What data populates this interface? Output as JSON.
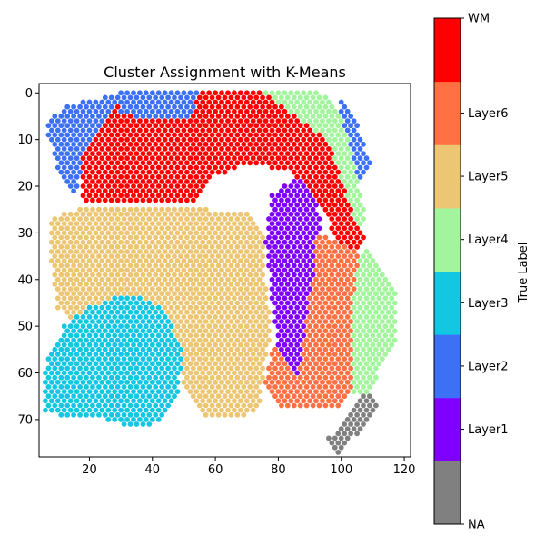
{
  "chart_data": {
    "type": "scatter",
    "title": "Cluster Assignment with K-Means",
    "xlabel": "",
    "ylabel": "",
    "xlim": [
      4,
      122
    ],
    "ylim": [
      78,
      -2
    ],
    "y_inverted": true,
    "x_ticks": [
      20,
      40,
      60,
      80,
      100,
      120
    ],
    "y_ticks": [
      0,
      10,
      20,
      30,
      40,
      50,
      60,
      70
    ],
    "grid": false,
    "colorbar": {
      "label": "True Label",
      "placement": "right",
      "categories": [
        {
          "name": "NA",
          "color": "#808080"
        },
        {
          "name": "Layer1",
          "color": "#8000ff"
        },
        {
          "name": "Layer2",
          "color": "#3c70f5"
        },
        {
          "name": "Layer3",
          "color": "#13c7e3"
        },
        {
          "name": "Layer4",
          "color": "#a2f59c"
        },
        {
          "name": "Layer5",
          "color": "#edc674"
        },
        {
          "name": "Layer6",
          "color": "#ff7142"
        },
        {
          "name": "WM",
          "color": "#ff0000"
        }
      ]
    },
    "regions": [
      {
        "label": "WM",
        "points": [
          [
            18,
            13
          ],
          [
            30,
            0
          ],
          [
            50,
            0
          ],
          [
            75,
            0
          ],
          [
            92,
            0
          ],
          [
            104,
            20
          ],
          [
            108,
            32
          ],
          [
            102,
            36
          ],
          [
            94,
            25
          ],
          [
            84,
            17
          ],
          [
            70,
            15
          ],
          [
            60,
            18
          ],
          [
            52,
            24
          ],
          [
            42,
            24
          ],
          [
            30,
            24
          ],
          [
            18,
            24
          ]
        ]
      },
      {
        "label": "Layer2",
        "points": [
          [
            6,
            7
          ],
          [
            12,
            3
          ],
          [
            30,
            0
          ],
          [
            26,
            6
          ],
          [
            22,
            10
          ],
          [
            18,
            13
          ],
          [
            16,
            22
          ],
          [
            10,
            16
          ]
        ]
      },
      {
        "label": "Layer2",
        "points": [
          [
            30,
            0
          ],
          [
            55,
            0
          ],
          [
            52,
            5
          ],
          [
            40,
            6
          ],
          [
            30,
            4
          ]
        ]
      },
      {
        "label": "Layer2",
        "points": [
          [
            100,
            0
          ],
          [
            104,
            5
          ],
          [
            108,
            12
          ],
          [
            110,
            15
          ],
          [
            105,
            20
          ],
          [
            100,
            12
          ]
        ]
      },
      {
        "label": "Layer4",
        "points": [
          [
            76,
            0
          ],
          [
            94,
            0
          ],
          [
            100,
            5
          ],
          [
            104,
            14
          ],
          [
            108,
            26
          ],
          [
            106,
            30
          ],
          [
            100,
            18
          ],
          [
            96,
            10
          ]
        ]
      },
      {
        "label": "Layer4",
        "points": [
          [
            108,
            32
          ],
          [
            112,
            36
          ],
          [
            118,
            42
          ],
          [
            118,
            52
          ],
          [
            112,
            60
          ],
          [
            108,
            66
          ],
          [
            100,
            62
          ],
          [
            102,
            50
          ],
          [
            104,
            40
          ]
        ]
      },
      {
        "label": "Layer5",
        "points": [
          [
            8,
            27
          ],
          [
            16,
            25
          ],
          [
            30,
            25
          ],
          [
            44,
            25
          ],
          [
            58,
            25
          ],
          [
            72,
            26
          ],
          [
            76,
            30
          ],
          [
            76,
            40
          ],
          [
            78,
            50
          ],
          [
            76,
            58
          ],
          [
            74,
            68
          ],
          [
            66,
            70
          ],
          [
            56,
            70
          ],
          [
            50,
            62
          ],
          [
            44,
            46
          ],
          [
            34,
            44
          ],
          [
            24,
            46
          ],
          [
            16,
            50
          ],
          [
            10,
            46
          ],
          [
            8,
            36
          ]
        ]
      },
      {
        "label": "Layer3",
        "points": [
          [
            7,
            56
          ],
          [
            12,
            50
          ],
          [
            20,
            46
          ],
          [
            28,
            44
          ],
          [
            38,
            44
          ],
          [
            44,
            46
          ],
          [
            50,
            56
          ],
          [
            48,
            66
          ],
          [
            44,
            70
          ],
          [
            36,
            72
          ],
          [
            26,
            70
          ],
          [
            16,
            70
          ],
          [
            6,
            68
          ],
          [
            5,
            62
          ]
        ]
      },
      {
        "label": "Layer1",
        "points": [
          [
            78,
            22
          ],
          [
            86,
            18
          ],
          [
            92,
            22
          ],
          [
            94,
            30
          ],
          [
            92,
            40
          ],
          [
            90,
            48
          ],
          [
            88,
            56
          ],
          [
            86,
            64
          ],
          [
            82,
            64
          ],
          [
            80,
            56
          ],
          [
            78,
            44
          ],
          [
            76,
            32
          ]
        ]
      },
      {
        "label": "Layer6",
        "points": [
          [
            92,
            30
          ],
          [
            100,
            32
          ],
          [
            106,
            34
          ],
          [
            104,
            44
          ],
          [
            104,
            56
          ],
          [
            104,
            64
          ],
          [
            98,
            68
          ],
          [
            88,
            68
          ],
          [
            80,
            68
          ],
          [
            76,
            62
          ],
          [
            78,
            54
          ],
          [
            82,
            56
          ],
          [
            86,
            62
          ],
          [
            88,
            54
          ],
          [
            90,
            44
          ],
          [
            92,
            38
          ]
        ]
      },
      {
        "label": "NA",
        "points": [
          [
            100,
            72
          ],
          [
            108,
            64
          ],
          [
            112,
            66
          ],
          [
            110,
            70
          ],
          [
            104,
            74
          ],
          [
            98,
            78
          ],
          [
            96,
            74
          ]
        ]
      }
    ]
  }
}
